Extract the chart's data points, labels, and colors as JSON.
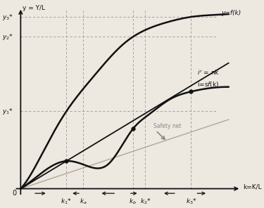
{
  "background_color": "#ede8e0",
  "line_color": "#111111",
  "dashed_color": "#999999",
  "safety_net_color": "#b0a898",
  "arrow_color": "#888888",
  "xlabel": "k=K/L",
  "ylabel": "y = Y/L",
  "k1": 0.22,
  "ka": 0.3,
  "kb": 0.54,
  "k2": 0.6,
  "k3": 0.82
}
